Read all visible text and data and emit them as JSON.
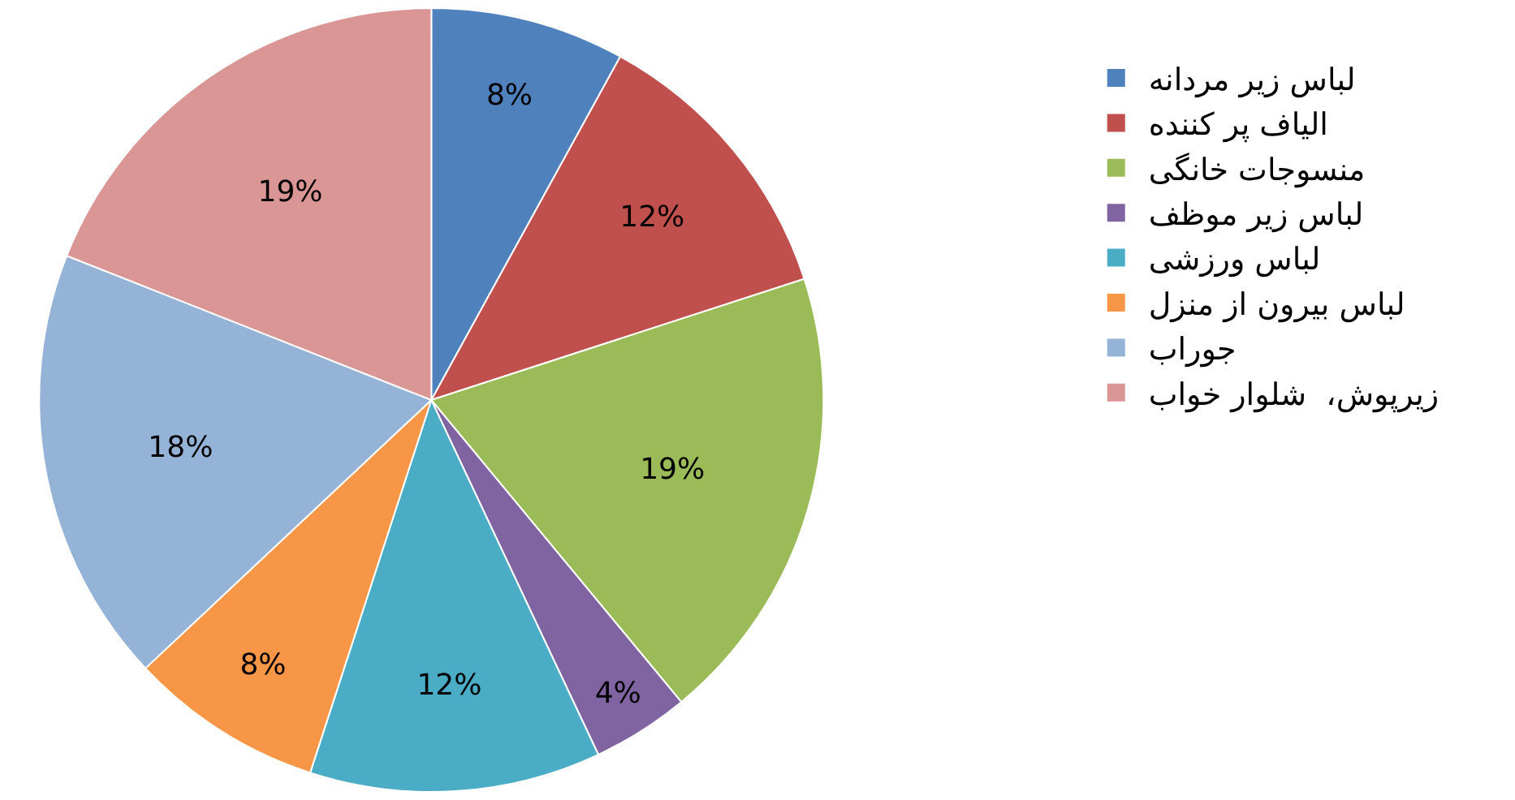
{
  "chart_data": {
    "type": "pie",
    "categories": [
      "لباس زیر مردانه",
      "الیاف پر کننده",
      "منسوجات خانگی",
      "لباس زیر موظف",
      "لباس ورزشی",
      "لباس بیرون از منزل",
      "جوراب",
      "زیرپوش،  شلوار خواب"
    ],
    "values": [
      8,
      12,
      19,
      4,
      12,
      8,
      18,
      19
    ],
    "colors": [
      "#4f81bd",
      "#c0504d",
      "#9bbb59",
      "#8064a2",
      "#4bacc6",
      "#f79646",
      "#95b3d7",
      "#d99694"
    ],
    "value_labels": [
      "8%",
      "12%",
      "19%",
      "4%",
      "12%",
      "8%",
      "18%",
      "19%"
    ],
    "legend": "right"
  }
}
